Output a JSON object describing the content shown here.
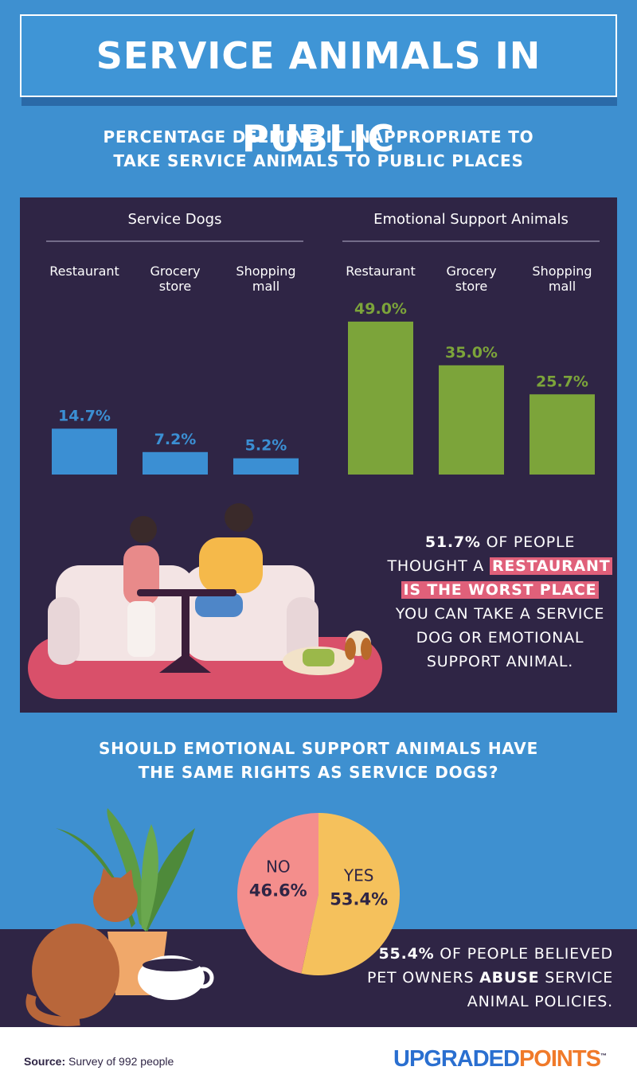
{
  "title": "SERVICE ANIMALS IN PUBLIC",
  "section_1_title": "PERCENTAGE DEEMING IT INAPPROPRIATE TO TAKE SERVICE ANIMALS TO PUBLIC PLACES",
  "chart_data": [
    {
      "type": "bar",
      "title": "Service Dogs",
      "categories": [
        "Restaurant",
        "Grocery store",
        "Shopping mall"
      ],
      "values": [
        14.7,
        7.2,
        5.2
      ],
      "value_labels": [
        "14.7%",
        "7.2%",
        "5.2%"
      ],
      "color": "#3b8fd3"
    },
    {
      "type": "bar",
      "title": "Emotional Support Animals",
      "categories": [
        "Restaurant",
        "Grocery store",
        "Shopping mall"
      ],
      "values": [
        49.0,
        35.0,
        25.7
      ],
      "value_labels": [
        "49.0%",
        "35.0%",
        "25.7%"
      ],
      "color": "#7ca43a"
    },
    {
      "type": "pie",
      "title": "SHOULD EMOTIONAL SUPPORT ANIMALS HAVE THE SAME RIGHTS AS SERVICE DOGS?",
      "categories": [
        "NO",
        "YES"
      ],
      "values": [
        46.6,
        53.4
      ],
      "value_labels": [
        "46.6%",
        "53.4%"
      ],
      "colors": [
        "#f48e8c",
        "#f5c15c"
      ]
    }
  ],
  "callout_1": {
    "stat": "51.7%",
    "text_1": "OF PEOPLE",
    "text_2": "THOUGHT A",
    "highlight_1": "RESTAURANT",
    "highlight_2": "IS THE WORST PLACE",
    "text_3": "YOU CAN TAKE A SERVICE DOG OR EMOTIONAL SUPPORT ANIMAL."
  },
  "callout_2": {
    "stat": "55.4%",
    "text_1": "OF PEOPLE BELIEVED",
    "text_2": "PET OWNERS",
    "bold": "ABUSE",
    "text_3": "SERVICE",
    "text_4": "ANIMAL POLICIES."
  },
  "source": {
    "label": "Source:",
    "text": "Survey of 992 people"
  },
  "logo": {
    "part_1": "UPGRADED",
    "part_2": "POINTS",
    "mark": "™"
  }
}
